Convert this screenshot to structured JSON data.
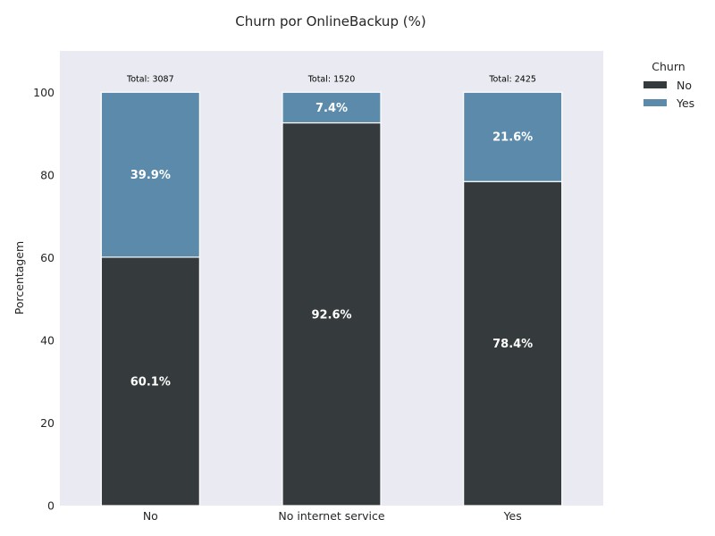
{
  "chart_data": {
    "type": "bar",
    "stacked": true,
    "title": "Churn por OnlineBackup (%)",
    "xlabel": "",
    "ylabel": "Porcentagem",
    "ylim": [
      0,
      110
    ],
    "yticks": [
      0,
      20,
      40,
      60,
      80,
      100
    ],
    "categories": [
      "No",
      "No internet service",
      "Yes"
    ],
    "series": [
      {
        "name": "No",
        "values": [
          60.1,
          92.6,
          78.4
        ],
        "labels": [
          "60.1%",
          "92.6%",
          "78.4%"
        ],
        "color": "#353a3c"
      },
      {
        "name": "Yes",
        "values": [
          39.9,
          7.4,
          21.6
        ],
        "labels": [
          "39.9%",
          "7.4%",
          "21.6%"
        ],
        "color": "#5b8aab"
      }
    ],
    "totals": [
      "Total: 3087",
      "Total: 1520",
      "Total: 2425"
    ],
    "legend": {
      "title": "Churn",
      "placement": "outside-top-right"
    },
    "grid": false,
    "background": "#eaeaf2"
  }
}
